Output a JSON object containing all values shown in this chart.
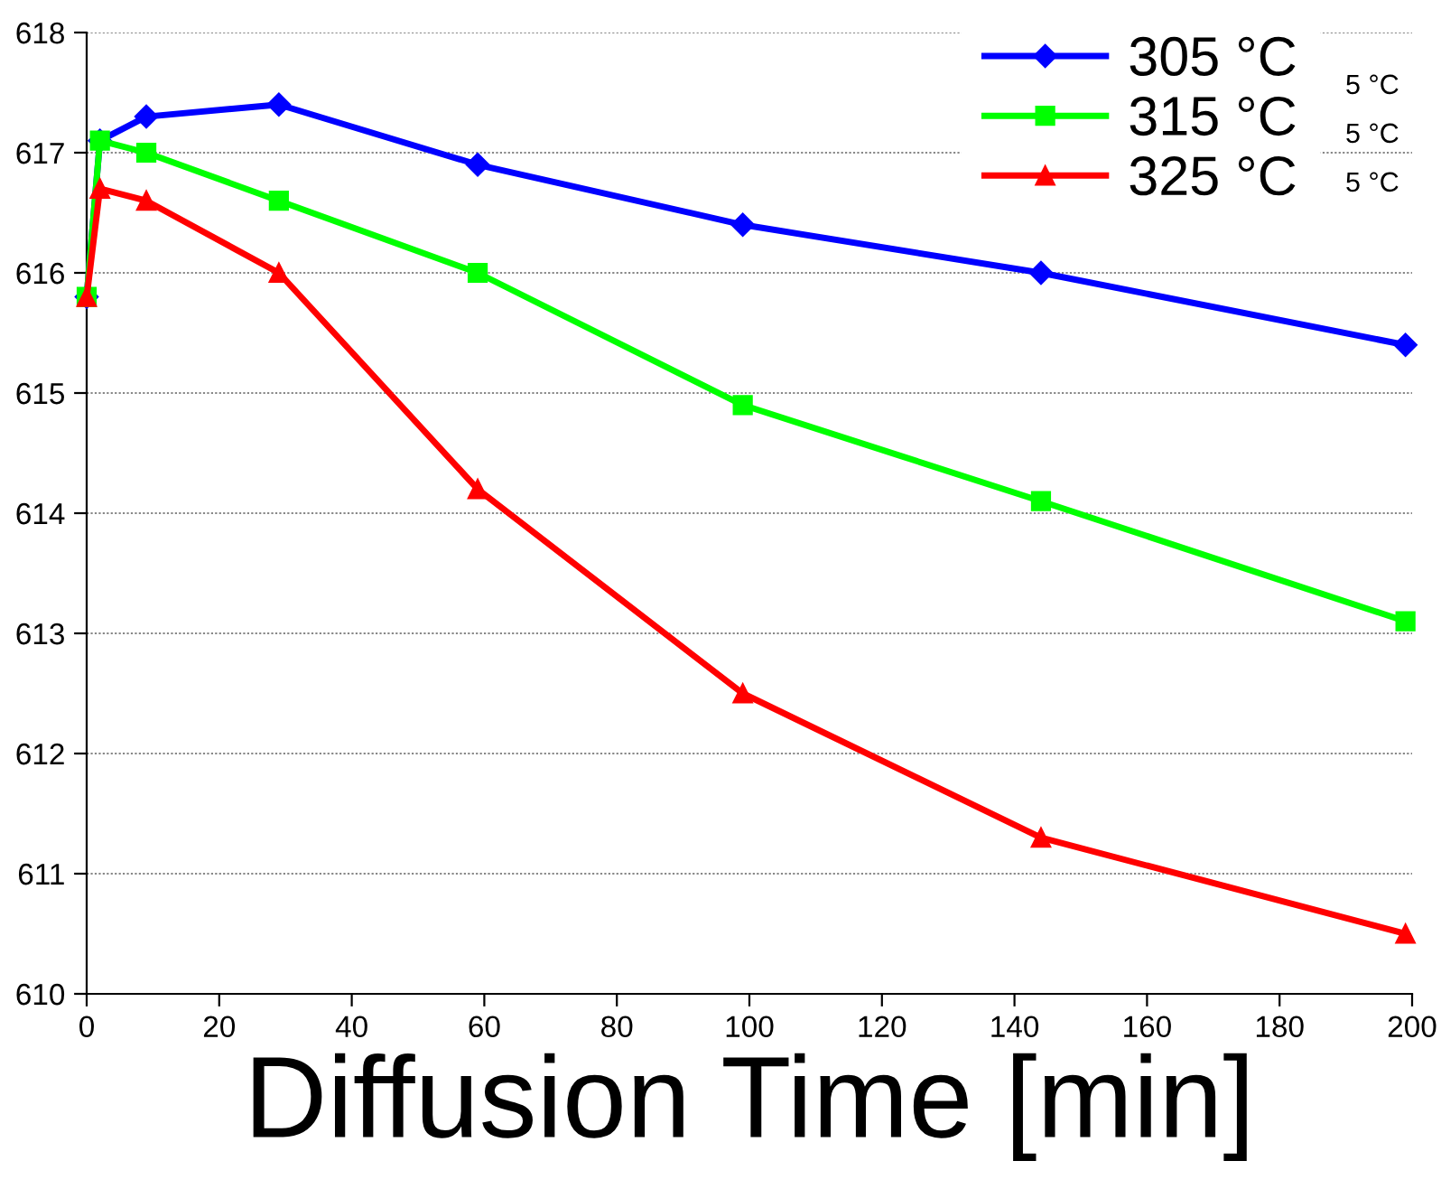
{
  "chart_data": {
    "type": "line",
    "xlabel": "Diffusion Time [min]",
    "x": [
      0,
      2,
      9,
      29,
      59,
      99,
      144,
      199
    ],
    "series": [
      {
        "name": "305 °C",
        "color": "#0000ff",
        "marker": "diamond",
        "values": [
          615.8,
          617.1,
          617.3,
          617.4,
          616.9,
          616.4,
          616.0,
          615.4
        ]
      },
      {
        "name": "315 °C",
        "color": "#00ff00",
        "marker": "square",
        "values": [
          615.8,
          617.1,
          617.0,
          616.6,
          616.0,
          614.9,
          614.1,
          613.1
        ]
      },
      {
        "name": "325 °C",
        "color": "#ff0000",
        "marker": "triangle",
        "values": [
          615.8,
          616.7,
          616.6,
          616.0,
          614.2,
          612.5,
          611.3,
          610.5
        ]
      }
    ],
    "xlim": [
      0,
      200
    ],
    "xticks": [
      0,
      20,
      40,
      60,
      80,
      100,
      120,
      140,
      160,
      180,
      200
    ],
    "ylim": [
      610,
      618
    ],
    "yticks": [
      610,
      611,
      612,
      613,
      614,
      615,
      616,
      617,
      618
    ],
    "grid": "y",
    "legend": "top right",
    "line_style": "solid",
    "annotations": [
      "5 °C",
      "5 °C",
      "5 °C"
    ]
  }
}
